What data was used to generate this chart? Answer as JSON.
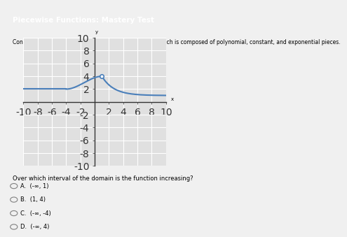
{
  "title": "Piecewise Functions: Mastery Test",
  "description": "Consider the piecewise function shown on the graph, which is composed of polynomial, constant, and exponential pieces.",
  "question": "Over which interval of the domain is the function increasing?",
  "options": [
    "A.  (-∞, 1)",
    "B.  (1, 4)",
    "C.  (-∞, -4)",
    "D.  (-∞, 4)"
  ],
  "title_bg": "#4a86c8",
  "title_color": "#ffffff",
  "graph_bg": "#e0e0e0",
  "grid_color": "#ffffff",
  "line_color": "#4a7fba",
  "axis_color": "#333333",
  "page_bg": "#f0f0f0",
  "xlim": [
    -10,
    10
  ],
  "ylim": [
    -10,
    10
  ],
  "xticks": [
    -10,
    -8,
    -6,
    -4,
    -2,
    0,
    2,
    4,
    6,
    8,
    10
  ],
  "yticks": [
    -10,
    -8,
    -6,
    -4,
    -2,
    0,
    2,
    4,
    6,
    8,
    10
  ]
}
